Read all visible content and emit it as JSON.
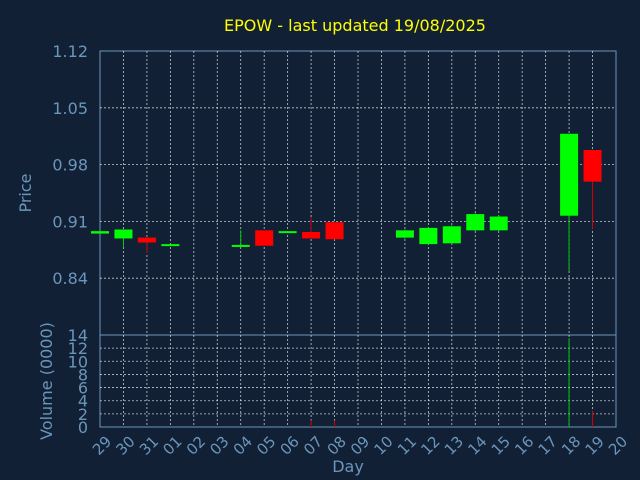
{
  "chart_data": [
    {
      "type": "candlestick",
      "title": "EPOW - last updated 19/08/2025",
      "ylabel": "Price",
      "ylim": [
        0.77,
        1.12
      ],
      "yticks": [
        "1.12",
        "1.05",
        "0.98",
        "0.91",
        "0.84"
      ],
      "grid": true,
      "candles": [
        {
          "day": "29",
          "open": 0.895,
          "high": 0.898,
          "low": 0.895,
          "close": 0.898
        },
        {
          "day": "30",
          "open": 0.889,
          "high": 0.9,
          "low": 0.878,
          "close": 0.9
        },
        {
          "day": "31",
          "open": 0.89,
          "high": 0.891,
          "low": 0.871,
          "close": 0.884
        },
        {
          "day": "01",
          "open": 0.881,
          "high": 0.882,
          "low": 0.881,
          "close": 0.882
        },
        {
          "day": "04",
          "open": 0.88,
          "high": 0.899,
          "low": 0.879,
          "close": 0.881
        },
        {
          "day": "05",
          "open": 0.899,
          "high": 0.899,
          "low": 0.88,
          "close": 0.88
        },
        {
          "day": "06",
          "open": 0.897,
          "high": 0.898,
          "low": 0.896,
          "close": 0.898
        },
        {
          "day": "07",
          "open": 0.897,
          "high": 0.915,
          "low": 0.889,
          "close": 0.889
        },
        {
          "day": "08",
          "open": 0.909,
          "high": 0.909,
          "low": 0.888,
          "close": 0.888
        },
        {
          "day": "11",
          "open": 0.89,
          "high": 0.9,
          "low": 0.889,
          "close": 0.899
        },
        {
          "day": "12",
          "open": 0.882,
          "high": 0.903,
          "low": 0.881,
          "close": 0.902
        },
        {
          "day": "13",
          "open": 0.883,
          "high": 0.905,
          "low": 0.882,
          "close": 0.904
        },
        {
          "day": "14",
          "open": 0.899,
          "high": 0.92,
          "low": 0.898,
          "close": 0.919
        },
        {
          "day": "15",
          "open": 0.899,
          "high": 0.918,
          "low": 0.898,
          "close": 0.916
        },
        {
          "day": "18",
          "open": 0.917,
          "high": 1.018,
          "low": 0.849,
          "close": 1.018
        },
        {
          "day": "19",
          "open": 0.998,
          "high": 0.998,
          "low": 0.9,
          "close": 0.959
        }
      ]
    },
    {
      "type": "bar",
      "ylabel": "Volume (0000)",
      "xlabel": "Day",
      "ylim": [
        0,
        14
      ],
      "yticks": [
        "14",
        "12",
        "10",
        "8",
        "6",
        "4",
        "2",
        "0"
      ],
      "categories": [
        "29",
        "30",
        "31",
        "01",
        "02",
        "03",
        "04",
        "05",
        "06",
        "07",
        "08",
        "09",
        "10",
        "11",
        "12",
        "13",
        "14",
        "15",
        "16",
        "17",
        "18",
        "19",
        "20"
      ],
      "values": [
        0,
        0,
        0,
        0,
        0,
        0,
        0,
        0,
        0,
        1,
        1,
        0,
        0,
        0,
        0,
        0,
        0,
        0,
        0,
        0,
        13.5,
        2.5,
        0
      ],
      "bar_colors": [
        "up",
        "up",
        "down",
        "up",
        "up",
        "up",
        "down",
        "down",
        "up",
        "down",
        "down",
        "up",
        "up",
        "up",
        "up",
        "up",
        "up",
        "up",
        "up",
        "up",
        "up",
        "down",
        "up"
      ]
    }
  ],
  "colors": {
    "background": "#112035",
    "title": "#ffff00",
    "axis_text": "#6b96bb",
    "grid": "#ffffff",
    "up": "#00ff00",
    "down": "#ff0000",
    "up_wick": "#00cc00",
    "down_wick": "#cc0000"
  }
}
